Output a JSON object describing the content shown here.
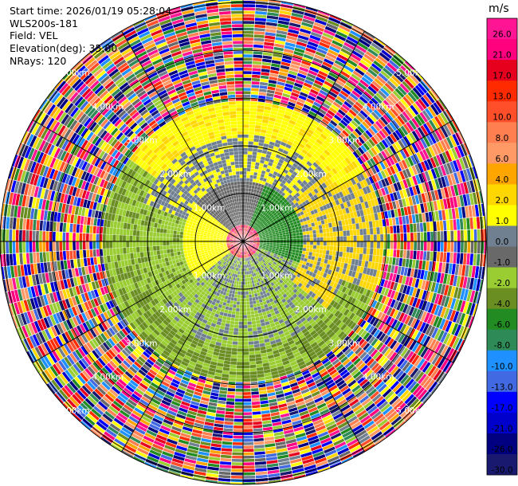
{
  "header": {
    "start_time": "Start time: 2026/01/19 05:28:04",
    "instrument": "WLS200s-181",
    "field": "Field: VEL",
    "elevation": "Elevation(deg): 35.00",
    "nrays": "NRays: 120"
  },
  "range_labels": {
    "r1": "1.00km",
    "r2": "2.00km",
    "r3": "3.00km",
    "r4": "4.00km",
    "r5": "5.00km"
  },
  "colorbar": {
    "unit": "m/s",
    "ticks": [
      "26.0",
      "21.0",
      "17.0",
      "13.0",
      "10.0",
      "8.0",
      "6.0",
      "4.0",
      "2.0",
      "1.0",
      "0.0",
      "-1.0",
      "-2.0",
      "-4.0",
      "-6.0",
      "-8.0",
      "-10.0",
      "-13.0",
      "-17.0",
      "-21.0",
      "-26.0",
      "-30.0"
    ],
    "colors": [
      "#ff1493",
      "#ff007f",
      "#e6001e",
      "#ff2a00",
      "#ff4e2a",
      "#ff7f50",
      "#ff9966",
      "#ffa500",
      "#ffd700",
      "#ffff00",
      "#708090",
      "#696969",
      "#9acd32",
      "#6b8e23",
      "#228b22",
      "#2e8b57",
      "#1e90ff",
      "#4169e1",
      "#0000ff",
      "#0000cd",
      "#000080",
      "#191970"
    ]
  }
}
